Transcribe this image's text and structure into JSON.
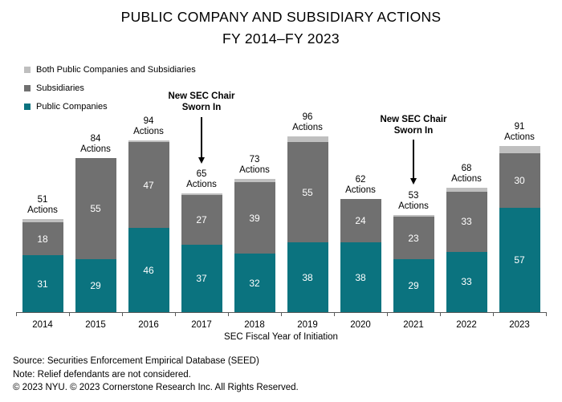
{
  "title": {
    "line1": "PUBLIC COMPANY AND SUBSIDIARY ACTIONS",
    "line2": "FY 2014–FY 2023"
  },
  "legend": [
    {
      "label": "Both Public Companies and Subsidiaries",
      "color": "#bfbfbf"
    },
    {
      "label": "Subsidiaries",
      "color": "#707070"
    },
    {
      "label": "Public Companies",
      "color": "#0b737f"
    }
  ],
  "chart_data": {
    "type": "bar",
    "stacked": true,
    "categories": [
      "2014",
      "2015",
      "2016",
      "2017",
      "2018",
      "2019",
      "2020",
      "2021",
      "2022",
      "2023"
    ],
    "series": [
      {
        "name": "Public Companies",
        "color": "#0b737f",
        "values": [
          31,
          29,
          46,
          37,
          32,
          38,
          38,
          29,
          33,
          57
        ]
      },
      {
        "name": "Subsidiaries",
        "color": "#707070",
        "values": [
          18,
          55,
          47,
          27,
          39,
          55,
          24,
          23,
          33,
          30
        ]
      },
      {
        "name": "Both Public Companies and Subsidiaries",
        "color": "#bfbfbf",
        "values": [
          2,
          0,
          1,
          1,
          2,
          3,
          0,
          1,
          2,
          4
        ]
      }
    ],
    "totals": [
      51,
      84,
      94,
      65,
      73,
      96,
      62,
      53,
      68,
      91
    ],
    "total_label_suffix": "Actions",
    "xlabel": "SEC Fiscal Year of Initiation",
    "ylim": [
      0,
      100
    ],
    "grid": false,
    "legend_position": "top-left",
    "annotations": [
      {
        "line1": "New SEC Chair",
        "line2": "Sworn In",
        "category": "2017"
      },
      {
        "line1": "New SEC Chair",
        "line2": "Sworn In",
        "category": "2021"
      }
    ],
    "axis_color": "#595959"
  },
  "footer": {
    "source": "Source: Securities Enforcement Empirical Database (SEED)",
    "note": "Note: Relief defendants are not considered.",
    "copyright": "© 2023 NYU. © 2023 Cornerstone Research Inc. All Rights Reserved."
  }
}
